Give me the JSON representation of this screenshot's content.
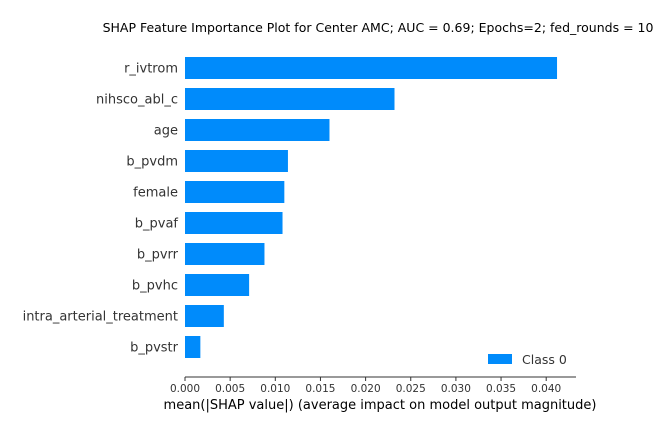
{
  "chart_data": {
    "type": "bar",
    "orientation": "horizontal",
    "title": "SHAP Feature Importance Plot for Center AMC; AUC = 0.69; Epochs=2; fed_rounds = 10",
    "xlabel": "mean(|SHAP value|) (average impact on model output magnitude)",
    "ylabel": "",
    "categories": [
      "r_ivtrom",
      "nihsco_abl_c",
      "age",
      "b_pvdm",
      "female",
      "b_pvaf",
      "b_pvrr",
      "b_pvhc",
      "intra_arterial_treatment",
      "b_pvstr"
    ],
    "series": [
      {
        "name": "Class 0",
        "color": "#008bfb",
        "values": [
          0.0412,
          0.0232,
          0.016,
          0.0114,
          0.011,
          0.0108,
          0.0088,
          0.0071,
          0.0043,
          0.0017
        ]
      }
    ],
    "xlim": [
      0,
      0.0433
    ],
    "xticks": [
      0,
      0.005,
      0.01,
      0.015,
      0.02,
      0.025,
      0.03,
      0.035,
      0.04
    ],
    "xtick_labels": [
      "0.000",
      "0.005",
      "0.010",
      "0.015",
      "0.020",
      "0.025",
      "0.030",
      "0.035",
      "0.040"
    ],
    "grid": false,
    "legend": {
      "placement": "bottom-right",
      "label": "Class 0"
    }
  }
}
